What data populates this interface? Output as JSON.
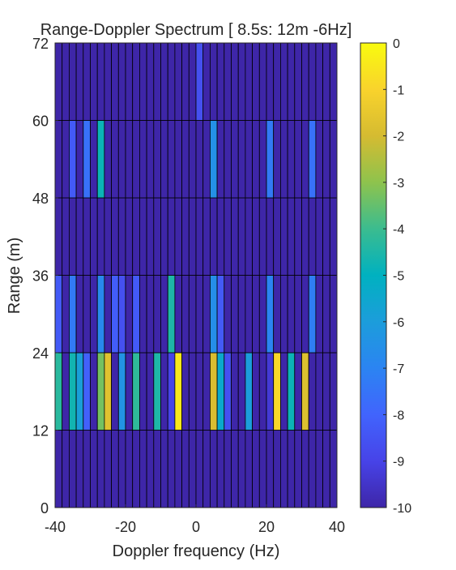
{
  "chart_data": {
    "type": "heatmap",
    "title": "Range-Doppler Spectrum [ 8.5s:  12m  -6Hz]",
    "xlabel": "Doppler frequency (Hz)",
    "ylabel": "Range (m)",
    "xlim": [
      -40,
      40
    ],
    "ylim": [
      0,
      72
    ],
    "x_ticks": [
      -40,
      -20,
      0,
      20,
      40
    ],
    "x_tick_labels": [
      "-40",
      "-20",
      "0",
      "20",
      "40"
    ],
    "y_ticks": [
      0,
      12,
      24,
      36,
      48,
      60,
      72
    ],
    "y_tick_labels": [
      "0",
      "12",
      "24",
      "36",
      "48",
      "60",
      "72"
    ],
    "colorbar": {
      "clim": [
        -10,
        0
      ],
      "ticks": [
        0,
        -1,
        -2,
        -3,
        -4,
        -5,
        -6,
        -7,
        -8,
        -9,
        -10
      ],
      "tick_labels": [
        "0",
        "-1",
        "-2",
        "-3",
        "-4",
        "-5",
        "-6",
        "-7",
        "-8",
        "-9",
        "-10"
      ],
      "colormap": "parula"
    },
    "doppler_bins_hz": [
      -40,
      -38,
      -36,
      -34,
      -32,
      -30,
      -28,
      -26,
      -24,
      -22,
      -20,
      -18,
      -16,
      -14,
      -12,
      -10,
      -8,
      -6,
      -4,
      -2,
      0,
      2,
      4,
      6,
      8,
      10,
      12,
      14,
      16,
      18,
      20,
      22,
      24,
      26,
      28,
      30,
      32,
      34,
      36,
      38
    ],
    "range_bins_m": [
      0,
      12,
      24,
      36,
      48,
      60
    ],
    "values_db": [
      [
        -10,
        -10,
        -10,
        -10,
        -10,
        -10,
        -10,
        -10,
        -10,
        -10,
        -10,
        -10,
        -10,
        -10,
        -10,
        -10,
        -10,
        -10,
        -10,
        -10,
        -10,
        -10,
        -10,
        -10,
        -10,
        -10,
        -10,
        -10,
        -10,
        -10,
        -10,
        -10,
        -10,
        -10,
        -10,
        -10,
        -10,
        -10,
        -10,
        -10
      ],
      [
        -4.3,
        -10,
        -4.7,
        -5.9,
        -8.1,
        -10,
        -3.3,
        -1.7,
        -10,
        -6.4,
        -10,
        -4.2,
        -10,
        -10,
        -4.5,
        -10,
        -9,
        -0.5,
        -10,
        -10,
        -10,
        -10,
        -1.9,
        -5.4,
        -8.6,
        -10,
        -10,
        -6,
        -10,
        -10,
        -9.3,
        -0.9,
        -10,
        -4.8,
        -10,
        -1.8,
        -10,
        -10,
        -10,
        -10
      ],
      [
        -8.3,
        -10,
        -7.3,
        -10,
        -10,
        -10,
        -6.8,
        -10,
        -8.2,
        -8.6,
        -10,
        -8.3,
        -10,
        -10,
        -10,
        -10,
        -4.5,
        -10,
        -10,
        -10,
        -10,
        -10,
        -6.6,
        -8.3,
        -10,
        -10,
        -10,
        -10,
        -10,
        -10,
        -7,
        -10,
        -10,
        -10,
        -10,
        -10,
        -7.2,
        -10,
        -10,
        -10
      ],
      [
        -10,
        -10,
        -10,
        -10,
        -10,
        -10,
        -10,
        -10,
        -10,
        -10,
        -10,
        -10,
        -10,
        -10,
        -10,
        -10,
        -10,
        -10,
        -10,
        -10,
        -10,
        -10,
        -10,
        -10,
        -10,
        -10,
        -10,
        -10,
        -10,
        -10,
        -10,
        -10,
        -10,
        -10,
        -10,
        -10,
        -10,
        -10,
        -10,
        -10
      ],
      [
        -10,
        -10,
        -8.3,
        -10,
        -7.6,
        -10,
        -4.8,
        -10,
        -10,
        -10,
        -10,
        -10,
        -10,
        -10,
        -10,
        -10,
        -10,
        -10,
        -10,
        -10,
        -10,
        -10,
        -6.5,
        -10,
        -10,
        -10,
        -10,
        -10,
        -10,
        -10,
        -7.3,
        -10,
        -10,
        -10,
        -10,
        -10,
        -7.6,
        -10,
        -10,
        -10
      ],
      [
        -10,
        -10,
        -10,
        -10,
        -10,
        -10,
        -10,
        -10,
        -10,
        -10,
        -10,
        -10,
        -10,
        -10,
        -10,
        -10,
        -10,
        -10,
        -10,
        -10,
        -8.6,
        -10,
        -10,
        -10,
        -10,
        -10,
        -10,
        -10,
        -10,
        -10,
        -10,
        -10,
        -10,
        -10,
        -10,
        -10,
        -10,
        -10,
        -10,
        -10
      ]
    ]
  }
}
